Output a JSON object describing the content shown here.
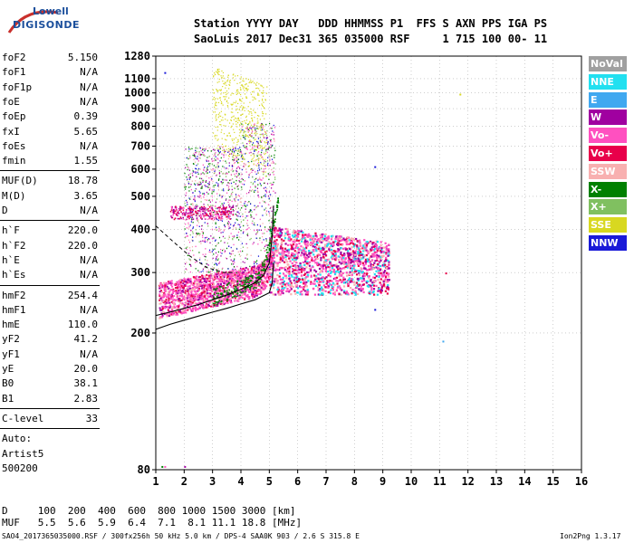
{
  "logo": {
    "top": "Lowell",
    "bottom": "DIGISONDE"
  },
  "header": {
    "labels": "Station YYYY DAY   DDD HHMMSS P1  FFS S AXN PPS IGA PS",
    "values": "SaoLuis 2017 Dec31 365 035000 RSF     1 715 100 00- 11"
  },
  "params_group1": [
    {
      "name": "foF2",
      "value": "5.150"
    },
    {
      "name": "foF1",
      "value": "N/A"
    },
    {
      "name": "foF1p",
      "value": "N/A"
    },
    {
      "name": "foE",
      "value": "N/A"
    },
    {
      "name": "foEp",
      "value": "0.39"
    },
    {
      "name": "fxI",
      "value": "5.65"
    },
    {
      "name": "foEs",
      "value": "N/A"
    },
    {
      "name": "fmin",
      "value": "1.55"
    }
  ],
  "params_group2": [
    {
      "name": "MUF(D)",
      "value": "18.78"
    },
    {
      "name": "M(D)",
      "value": "3.65"
    },
    {
      "name": "D",
      "value": "N/A"
    }
  ],
  "params_group3": [
    {
      "name": "h`F",
      "value": "220.0"
    },
    {
      "name": "h`F2",
      "value": "220.0"
    },
    {
      "name": "h`E",
      "value": "N/A"
    },
    {
      "name": "h`Es",
      "value": "N/A"
    }
  ],
  "params_group4": [
    {
      "name": "hmF2",
      "value": "254.4"
    },
    {
      "name": "hmF1",
      "value": "N/A"
    },
    {
      "name": "hmE",
      "value": "110.0"
    },
    {
      "name": "yF2",
      "value": "41.2"
    },
    {
      "name": "yF1",
      "value": "N/A"
    },
    {
      "name": "yE",
      "value": "20.0"
    },
    {
      "name": "B0",
      "value": "38.1"
    },
    {
      "name": "B1",
      "value": "2.83"
    }
  ],
  "clevel": {
    "name": "C-level",
    "value": "33"
  },
  "auto": [
    "Auto:",
    "Artist5",
    "500200"
  ],
  "legend": [
    {
      "label": "NoVal",
      "color": "#a0a0a0"
    },
    {
      "label": "NNE",
      "color": "#22e0f0"
    },
    {
      "label": "E",
      "color": "#40a8f0"
    },
    {
      "label": "W",
      "color": "#a000a0"
    },
    {
      "label": "Vo-",
      "color": "#ff50c0"
    },
    {
      "label": "Vo+",
      "color": "#e8004a"
    },
    {
      "label": "SSW",
      "color": "#f8b0b0"
    },
    {
      "label": "X-",
      "color": "#008000"
    },
    {
      "label": "X+",
      "color": "#80c060"
    },
    {
      "label": "SSE",
      "color": "#d8d820"
    },
    {
      "label": "NNW",
      "color": "#1a1ad8"
    }
  ],
  "footer": {
    "d_row": "D     100  200  400  600  800 1000 1500 3000 [km]",
    "muf_row": "MUF   5.5  5.6  5.9  6.4  7.1  8.1 11.1 18.8 [MHz]",
    "file": "SAO4_2017365035000.RSF / 300fx256h 50 kHz 5.0 km / DPS-4 SAA0K 903 / 2.6 S 315.8 E",
    "version": "Ion2Png 1.3.17"
  },
  "chart_data": {
    "type": "scatter",
    "title": "",
    "xlabel": "",
    "ylabel": "",
    "xlim": [
      1,
      16
    ],
    "ylim": [
      80,
      1280
    ],
    "yscale": "log",
    "xticks": [
      1,
      2,
      3,
      4,
      5,
      6,
      7,
      8,
      9,
      10,
      11,
      12,
      13,
      14,
      15,
      16
    ],
    "yticks": [
      80,
      200,
      300,
      400,
      500,
      600,
      700,
      800,
      900,
      1000,
      1100,
      1280
    ],
    "grid": true,
    "legend_position": "right",
    "profile_curve": {
      "x": [
        1.0,
        1.5,
        2.0,
        2.5,
        3.0,
        3.5,
        4.0,
        4.5,
        5.0,
        5.1,
        5.15
      ],
      "y": [
        205,
        212,
        218,
        224,
        230,
        236,
        243,
        250,
        262,
        280,
        320
      ]
    },
    "trace_curve": {
      "x": [
        1.0,
        1.5,
        2.0,
        2.5,
        3.0,
        3.5,
        4.0,
        4.5,
        4.8,
        5.0,
        5.1,
        5.15
      ],
      "y": [
        225,
        230,
        236,
        242,
        250,
        258,
        268,
        280,
        295,
        320,
        380,
        470
      ]
    },
    "dashed_curve": {
      "x": [
        1.0,
        1.6,
        2.2,
        2.8,
        3.4,
        3.8
      ],
      "y": [
        410,
        370,
        335,
        310,
        300,
        300
      ]
    }
  }
}
